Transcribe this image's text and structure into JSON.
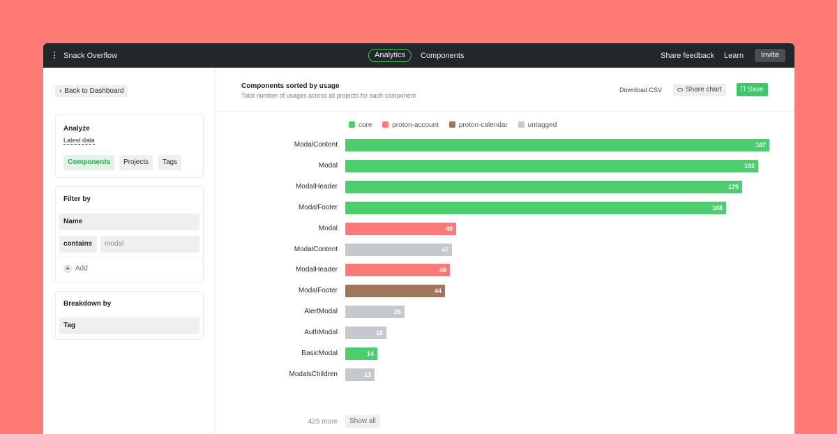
{
  "topbar": {
    "brand": "Snack Overflow",
    "tabs": [
      {
        "label": "Analytics",
        "active": true
      },
      {
        "label": "Components",
        "active": false
      }
    ],
    "share_feedback": "Share feedback",
    "learn": "Learn",
    "invite": "Invite"
  },
  "sidebar": {
    "back_label": "Back to Dashboard",
    "analyze": {
      "title": "Analyze",
      "data_source": "Latest data",
      "options": [
        {
          "label": "Components",
          "active": true
        },
        {
          "label": "Projects",
          "active": false
        },
        {
          "label": "Tags",
          "active": false
        }
      ]
    },
    "filter": {
      "title": "Filter by",
      "field": "Name",
      "operator": "contains",
      "value_placeholder": "modal",
      "add_label": "Add"
    },
    "breakdown": {
      "title": "Breakdown by",
      "field": "Tag"
    }
  },
  "main": {
    "title": "Components sorted by usage",
    "subtitle": "Total number of usages across all projects for each component",
    "download_csv": "Download CSV",
    "share_chart": "Share chart",
    "save": "Save",
    "more_label": "425 more",
    "show_all": "Show all"
  },
  "colors": {
    "core": "#4cce6e",
    "proton-account": "#fb7a77",
    "proton-calendar": "#a0755c",
    "untagged": "#c5c8cc",
    "accent": "#3ec86a"
  },
  "chart_data": {
    "type": "bar",
    "orientation": "horizontal",
    "title": "Components sorted by usage",
    "subtitle": "Total number of usages across all projects for each component",
    "legend": [
      "core",
      "proton-account",
      "proton-calendar",
      "untagged"
    ],
    "legend_position": "top",
    "xlim": [
      0,
      187
    ],
    "grid": false,
    "rows": [
      {
        "label": "ModalContent",
        "value": 187,
        "tag": "core"
      },
      {
        "label": "Modal",
        "value": 182,
        "tag": "core"
      },
      {
        "label": "ModalHeader",
        "value": 175,
        "tag": "core"
      },
      {
        "label": "ModalFooter",
        "value": 168,
        "tag": "core"
      },
      {
        "label": "Modal",
        "value": 49,
        "tag": "proton-account"
      },
      {
        "label": "ModalContent",
        "value": 47,
        "tag": "untagged"
      },
      {
        "label": "ModalHeader",
        "value": 46,
        "tag": "proton-account"
      },
      {
        "label": "ModalFooter",
        "value": 44,
        "tag": "proton-calendar"
      },
      {
        "label": "AlertModal",
        "value": 26,
        "tag": "untagged"
      },
      {
        "label": "AuthModal",
        "value": 18,
        "tag": "untagged"
      },
      {
        "label": "BasicModal",
        "value": 14,
        "tag": "core"
      },
      {
        "label": "ModalsChildren",
        "value": 13,
        "tag": "untagged"
      }
    ]
  }
}
